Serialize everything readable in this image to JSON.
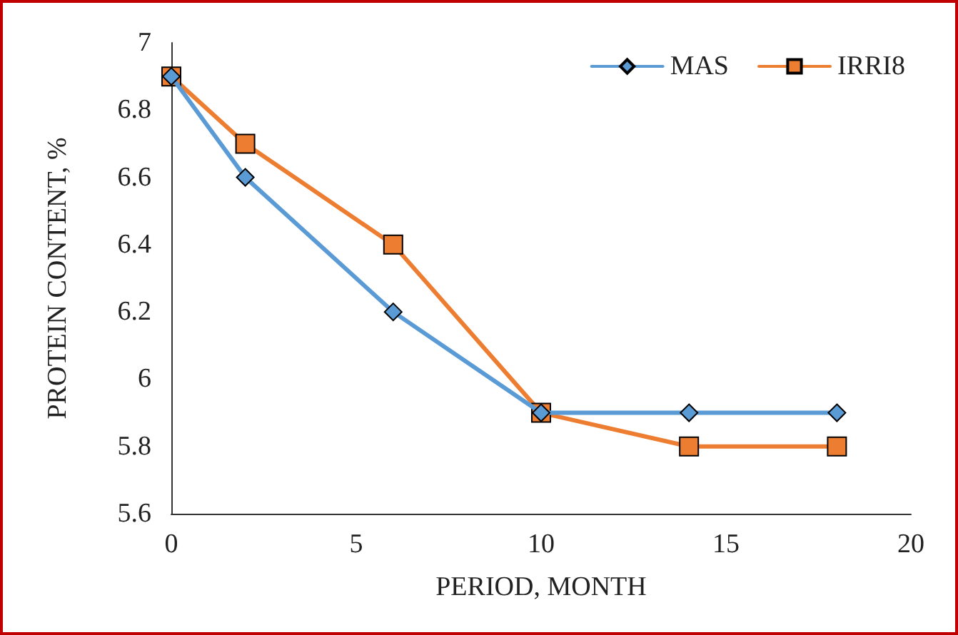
{
  "chart_data": {
    "type": "line",
    "xlabel": "PERIOD, MONTH",
    "ylabel": "PROTEIN CONTENT, %",
    "x": [
      0,
      2,
      6,
      10,
      14,
      18
    ],
    "series": [
      {
        "name": "MAS",
        "color": "#5b9bd5",
        "marker": "diamond",
        "values": [
          6.9,
          6.6,
          6.2,
          5.9,
          5.9,
          5.9
        ]
      },
      {
        "name": "IRRI8",
        "color": "#ed7d31",
        "marker": "square",
        "values": [
          6.9,
          6.7,
          6.4,
          5.9,
          5.8,
          5.8
        ]
      }
    ],
    "xlim": [
      0,
      20
    ],
    "xticks": [
      0,
      5,
      10,
      15,
      20
    ],
    "ylim": [
      5.6,
      7
    ],
    "yticks": [
      5.6,
      5.8,
      6,
      6.2,
      6.4,
      6.6,
      6.8,
      7
    ],
    "grid": false,
    "legend": "top right",
    "line_style": "solid"
  }
}
